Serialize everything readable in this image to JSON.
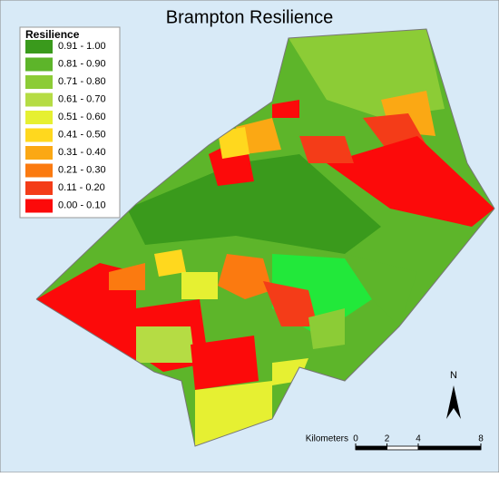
{
  "title": "Brampton Resilience",
  "legend": {
    "title": "Resilience",
    "items": [
      {
        "label": "0.91 - 1.00",
        "color": "#3a9a1c"
      },
      {
        "label": "0.81 - 0.90",
        "color": "#5db52a"
      },
      {
        "label": "0.71 - 0.80",
        "color": "#8ccc36"
      },
      {
        "label": "0.61 - 0.70",
        "color": "#b5dc44"
      },
      {
        "label": "0.51 - 0.60",
        "color": "#e6f032"
      },
      {
        "label": "0.41 - 0.50",
        "color": "#ffd81e"
      },
      {
        "label": "0.31 - 0.40",
        "color": "#fba814"
      },
      {
        "label": "0.21 - 0.30",
        "color": "#fb7a10"
      },
      {
        "label": "0.11 - 0.20",
        "color": "#f43c18"
      },
      {
        "label": "0.00 - 0.10",
        "color": "#fc0a0a"
      }
    ]
  },
  "scale_bar": {
    "label": "Kilometers",
    "ticks": [
      0,
      2,
      4,
      8
    ]
  },
  "north_arrow": "N"
}
